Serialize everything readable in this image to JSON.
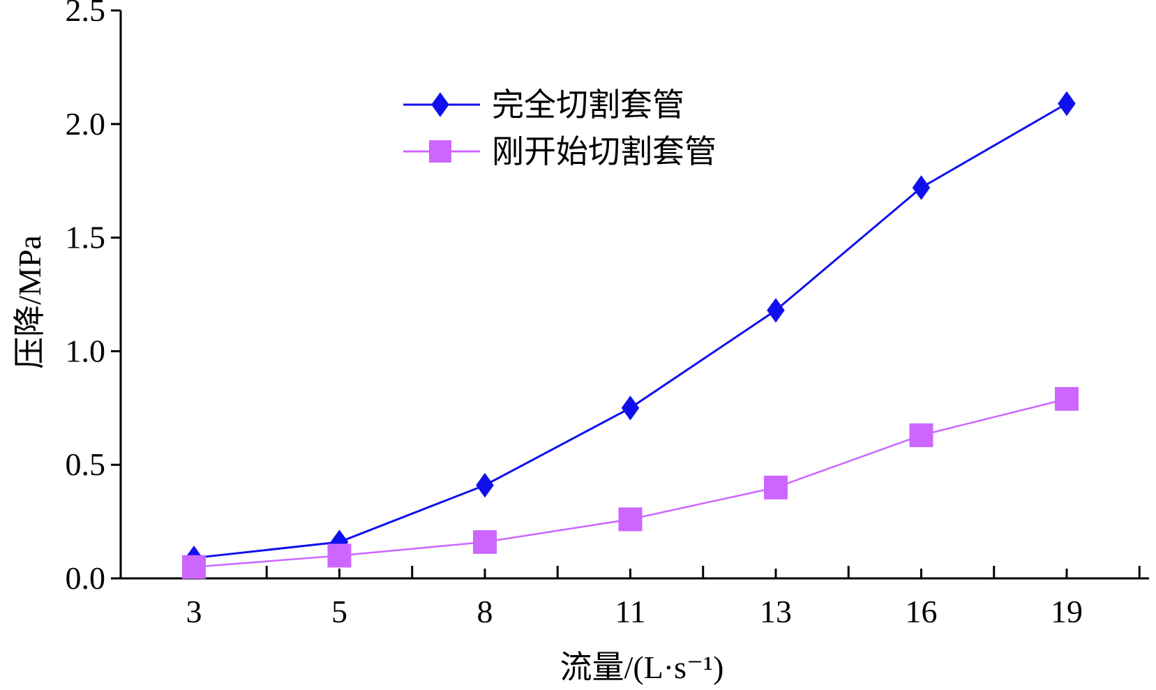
{
  "chart_data": {
    "type": "line",
    "categories": [
      "3",
      "5",
      "8",
      "11",
      "13",
      "16",
      "19"
    ],
    "series": [
      {
        "name": "完全切割套管",
        "color": "#1010ee",
        "marker": "diamond",
        "values": [
          0.09,
          0.16,
          0.41,
          0.75,
          1.18,
          1.72,
          2.09
        ]
      },
      {
        "name": "刚开始切割套管",
        "color": "#cc66ff",
        "marker": "square",
        "values": [
          0.05,
          0.1,
          0.16,
          0.26,
          0.4,
          0.63,
          0.79
        ]
      }
    ],
    "xlabel": "流量/(L·s⁻¹)",
    "ylabel": "压降/MPa",
    "ylim": [
      0,
      2.5
    ],
    "yticks": [
      "0.0",
      "0.5",
      "1.0",
      "1.5",
      "2.0",
      "2.5"
    ],
    "grid": false,
    "legend_position": "top-center"
  }
}
